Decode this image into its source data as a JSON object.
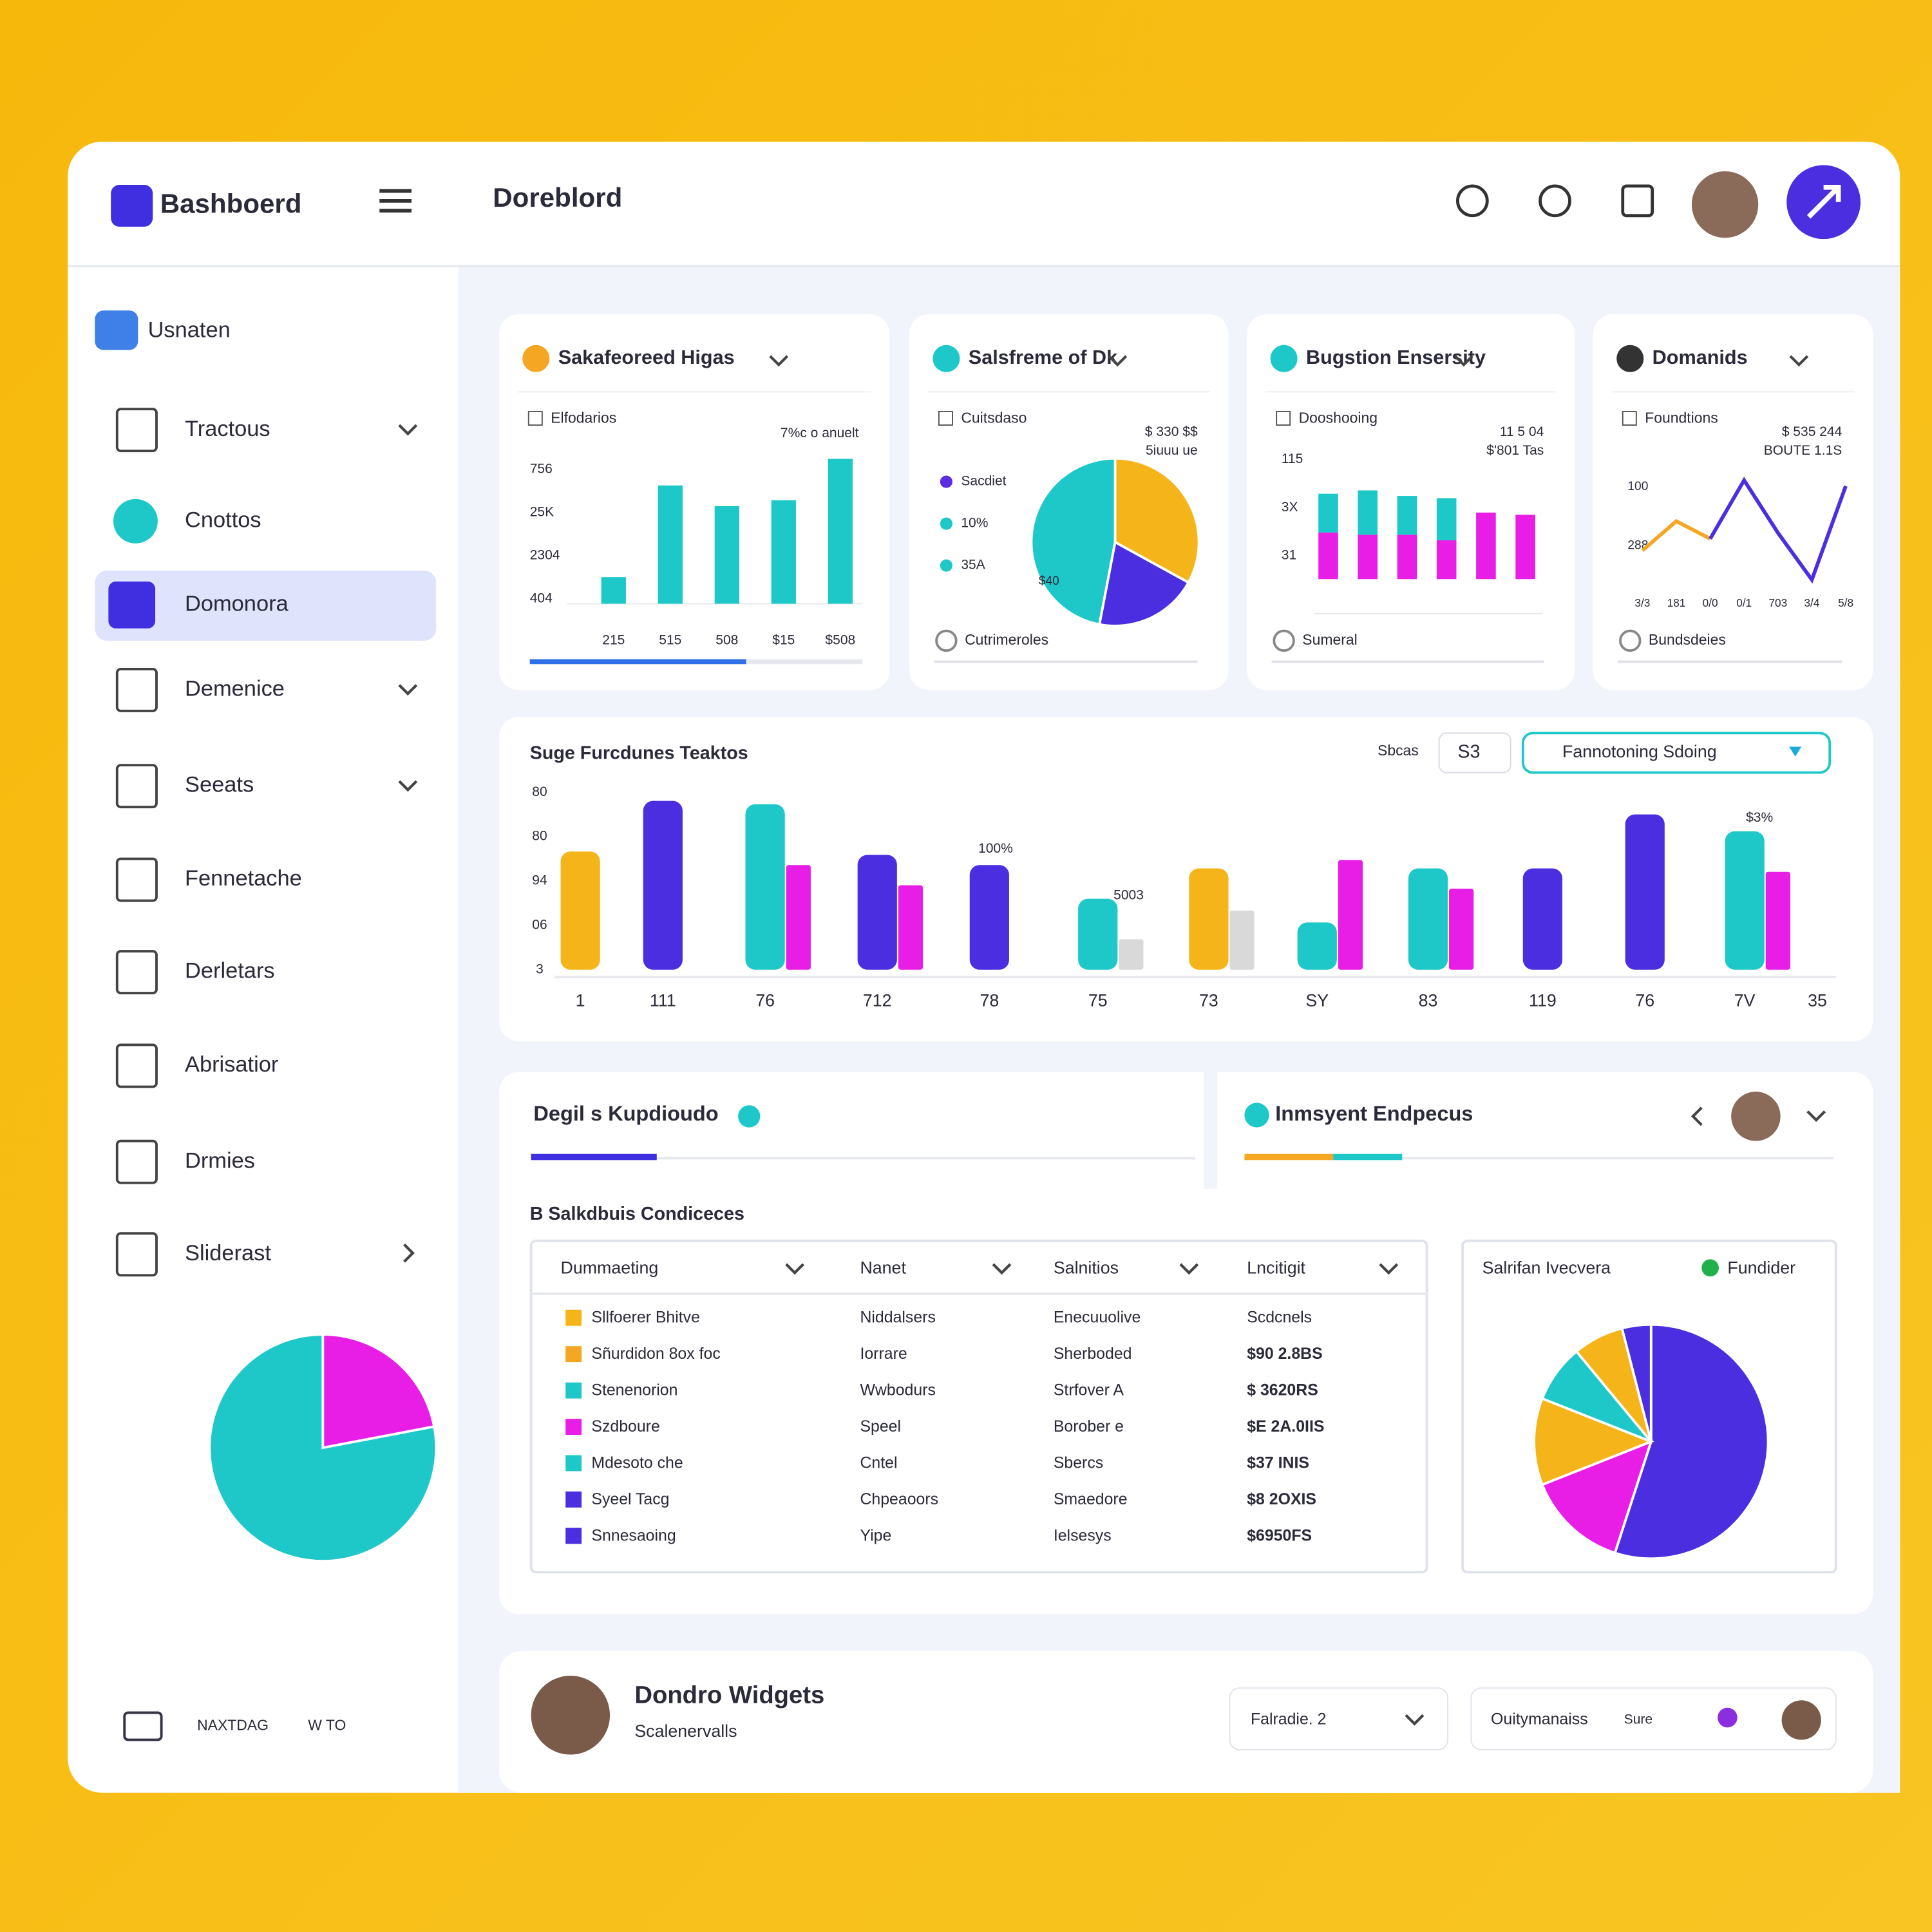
{
  "brand": "Bashboerd",
  "page_title": "Doreblord",
  "sidebar": {
    "section": "Usnaten",
    "active": 2,
    "items": [
      {
        "label": "Tractous",
        "expand": "down"
      },
      {
        "label": "Cnottos"
      },
      {
        "label": "Domonora"
      },
      {
        "label": "Demenice",
        "expand": "down"
      },
      {
        "label": "Seeats",
        "expand": "down"
      },
      {
        "label": "Fennetache"
      },
      {
        "label": "Derletars"
      },
      {
        "label": "Abrisatior"
      },
      {
        "label": "Drmies"
      },
      {
        "label": "Sliderast",
        "expand": "right"
      }
    ],
    "pie": {
      "type": "pie",
      "values": [
        22,
        78
      ],
      "colors": [
        "#e81ee6",
        "#1ec8c8"
      ]
    },
    "footer": [
      "NAXTDAG",
      "W TO"
    ]
  },
  "cards": [
    {
      "title": "Sakafeoreed Higas",
      "type": "bar",
      "legend": "Elfodarios",
      "note": "7%c o anuelt",
      "axis_labels": [
        "756",
        "25K",
        "2304",
        "404"
      ],
      "categories": [
        "215",
        "515",
        "508",
        "$15",
        "$508"
      ],
      "values": [
        18,
        80,
        66,
        70,
        98
      ],
      "color": "#1ec8c8",
      "ylim": [
        0,
        100
      ],
      "progress": 65
    },
    {
      "title": "Salsfreme of Dk",
      "type": "pie",
      "legend": "Cuitsdaso",
      "note": [
        "$ 330 $$",
        "5iuuu ue"
      ],
      "items": [
        {
          "label": "Sacdiet",
          "color": "#5b2ee0"
        },
        {
          "label": "10%",
          "color": "#1ec8c8"
        },
        {
          "label": "35A",
          "color": "#1ec8c8"
        }
      ],
      "slice_label": "$40",
      "values": [
        33,
        20,
        47
      ],
      "colors": [
        "#f5b51a",
        "#4b2ee0",
        "#1ec8c8"
      ],
      "footer": "Cutrimeroles"
    },
    {
      "title": "Bugstion Ensersity",
      "type": "stacked_bar",
      "legend": "Dooshooing",
      "note": [
        "11 5 04",
        "$'801 Tas"
      ],
      "axis_labels": [
        "115",
        "3X",
        "31"
      ],
      "series": [
        {
          "color": "#e81ee6",
          "values": [
            42,
            40,
            40,
            35,
            60,
            58
          ]
        },
        {
          "color": "#1ec8c8",
          "values": [
            35,
            40,
            35,
            38,
            null,
            null
          ]
        }
      ],
      "ylim": [
        0,
        100
      ],
      "footer": "Sumeral"
    },
    {
      "title": "Domanids",
      "type": "line",
      "legend": "Foundtions",
      "note": [
        "$ 535 244",
        "BOUTE 1.1S"
      ],
      "axis_labels": [
        "100",
        "288"
      ],
      "categories": [
        "3/3",
        "181",
        "0/0",
        "0/1",
        "703",
        "3/4",
        "5/8"
      ],
      "series": [
        {
          "color": "#f5a623",
          "values": [
            35,
            60,
            45,
            null,
            null,
            null,
            null
          ]
        },
        {
          "color": "#4b2ee0",
          "values": [
            null,
            null,
            45,
            95,
            50,
            10,
            90
          ]
        }
      ],
      "ylim": [
        0,
        100
      ],
      "footer": "Bundsdeies"
    }
  ],
  "main": {
    "title": "Suge Furcdunes Teaktos",
    "filter_label": "Sbcas",
    "filter_value": "S3",
    "button": "Fannotoning Sdoing",
    "axis_labels": [
      "80",
      "80",
      "94",
      "06",
      "3"
    ],
    "categories": [
      "1",
      "111",
      "76",
      "712",
      "78",
      "75",
      "73",
      "SY",
      "83",
      "119",
      "76",
      "7V",
      "35"
    ],
    "series": [
      {
        "values": [
          70,
          100,
          98,
          68,
          62,
          42,
          60,
          28,
          60,
          60,
          92,
          82,
          null
        ],
        "colors": [
          "#f5b51a",
          "#4b2ee0",
          "#1ec8c8",
          "#4b2ee0",
          "#4b2ee0",
          "#1ec8c8",
          "#f5b51a",
          "#1ec8c8",
          "#1ec8c8",
          "#4b2ee0",
          "#4b2ee0",
          "#1ec8c8",
          null
        ]
      },
      {
        "values": [
          null,
          null,
          62,
          50,
          null,
          18,
          35,
          65,
          48,
          null,
          null,
          58,
          null
        ],
        "colors": [
          null,
          null,
          "#e81ee6",
          "#e81ee6",
          null,
          "#d9d9d9",
          "#d9d9d9",
          "#e81ee6",
          "#e81ee6",
          null,
          null,
          "#e81ee6",
          null
        ]
      }
    ],
    "annotations": [
      "100%",
      "5003",
      "$3%"
    ],
    "ylim": [
      0,
      100
    ]
  },
  "details": {
    "tabs": [
      "Degil s Kupdioudo",
      "Inmsyent Endpecus"
    ],
    "section": "B Salkdbuis Condiceces",
    "table": {
      "headers": [
        "Dummaeting",
        "Nanet",
        "Salnitios",
        "Lncitigit"
      ],
      "rows": [
        [
          "Sllfoerer Bhitve",
          "Niddalsers",
          "Enecuuolive",
          "Scdcnels"
        ],
        [
          "Sñurdidon 8ox foc",
          "Iorrare",
          "Sherboded",
          "$90 2.8BS"
        ],
        [
          "Stenenorion",
          "Wwbodurs",
          "Strfover A",
          "$ 3620RS"
        ],
        [
          "Szdboure",
          "Speel",
          "Borober e",
          "$E 2A.0IIS"
        ],
        [
          "Mdesoto che",
          "Cntel",
          "Sbercs",
          "$37 INIS"
        ],
        [
          "Syeel Tacg",
          "Chpeaoors",
          "Smaedore",
          "$8 2OXIS"
        ],
        [
          "Snnesaoing",
          "Yipe",
          "Ielsesys",
          "$6950FS"
        ]
      ],
      "colors": [
        "#f5b51a",
        "#f5a623",
        "#1ec8c8",
        "#e81ee6",
        "#1ec8c8",
        "#4b2ee0",
        "#4b2ee0"
      ]
    },
    "pie": {
      "title": "Salrifan Ivecvera",
      "button": "Fundider",
      "values": [
        55,
        14,
        12,
        8,
        7,
        4
      ],
      "colors": [
        "#4b2ee0",
        "#e81ee6",
        "#f5b51a",
        "#1ec8c8",
        "#f5b51a",
        "#4b2ee0"
      ]
    }
  },
  "footer": {
    "title": "Dondro Widgets",
    "subtitle": "Scalenervalls",
    "select": "Falradie. 2",
    "action": "Ouitymanaiss",
    "action_note": "Sure"
  }
}
